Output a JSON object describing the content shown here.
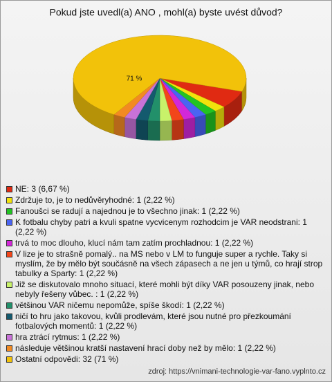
{
  "chart_data": {
    "type": "pie3d",
    "title": "Pokud jste uvedl(a) ANO , mohl(a) byste uvést důvod?",
    "categories": [
      "NE: 3 (6,67 %)",
      "Zdržuje to, je to nedůvěryhodné: 1 (2,22 %)",
      "Fanoušci se radují a najednou je to všechno jinak: 1 (2,22 %)",
      "K fotbalu chyby patri a kvuli spatne vycvicenym rozhodcim je VAR neodstrani: 1 (2,22 %)",
      "trvá to moc dlouho, klucí nám tam zatím prochladnou: 1 (2,22 %)",
      "V lize je to strašně pomalý.. na MS nebo v LM to funguje super a rychle. Taky si myslím, že by mělo být součásně na všech zápasech a ne jen u týmů, co hrají strop tabulky a Sparty: 1 (2,22 %)",
      "Již se diskutovalo mnoho situací, které mohli být díky VAR posouzeny jinak, nebo nebyly řešeny vůbec. : 1 (2,22 %)",
      "většinou VAR ničemu nepomůže, spíše škodí: 1 (2,22 %)",
      "ničí to hru jako takovou, kvůli prodlevám, které jsou nutné pro přezkoumání fotbalových momentů: 1 (2,22 %)",
      "hra ztrácí rytmus: 1 (2,22 %)",
      "následuje většinou kratší nastavení hrací doby než by mělo: 1 (2,22 %)",
      "Ostatní odpovědi: 32 (71 %)"
    ],
    "values": [
      3,
      1,
      1,
      1,
      1,
      1,
      1,
      1,
      1,
      1,
      1,
      32
    ],
    "value_labels": [
      null,
      null,
      null,
      null,
      null,
      null,
      null,
      null,
      null,
      null,
      null,
      "71 %"
    ],
    "colors": [
      "#e02a12",
      "#f2e20c",
      "#22c322",
      "#4a64f2",
      "#d228d8",
      "#f2461a",
      "#c8f26a",
      "#22906a",
      "#145a6e",
      "#c872d8",
      "#f28a22",
      "#f2c20a"
    ],
    "source": "zdroj: https://vnimani-technologie-var-fano.vyplnto.cz"
  }
}
